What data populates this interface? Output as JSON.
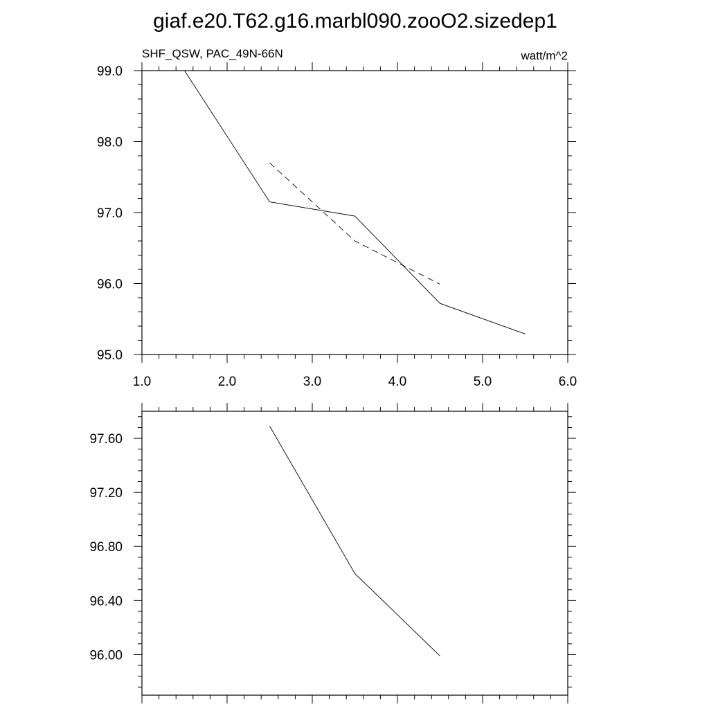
{
  "title": "giaf.e20.T62.g16.marbl090.zooO2.sizedep1",
  "chart_data": [
    {
      "type": "line",
      "left_label": "SHF_QSW, PAC_49N-66N",
      "right_label": "watt/m^2",
      "xlim": [
        1.0,
        6.0
      ],
      "ylim": [
        95.0,
        99.0
      ],
      "x_ticks": [
        1.0,
        2.0,
        3.0,
        4.0,
        5.0,
        6.0
      ],
      "x_tick_labels": [
        "1.0",
        "2.0",
        "3.0",
        "4.0",
        "5.0",
        "6.0"
      ],
      "y_ticks": [
        95.0,
        96.0,
        97.0,
        98.0,
        99.0
      ],
      "y_tick_labels": [
        "95.0",
        "96.0",
        "97.0",
        "98.0",
        "99.0"
      ],
      "grid": false,
      "series": [
        {
          "style": "solid",
          "x": [
            1.5,
            2.5,
            3.5,
            4.5,
            5.5
          ],
          "y": [
            99.0,
            97.15,
            96.95,
            95.72,
            95.29
          ]
        },
        {
          "style": "dashed",
          "x": [
            2.5,
            3.5,
            4.5
          ],
          "y": [
            97.7,
            96.6,
            95.99
          ]
        }
      ]
    },
    {
      "type": "line",
      "xlim": [
        1.0,
        6.0
      ],
      "ylim": [
        95.7,
        97.8
      ],
      "x_ticks": [
        1.0,
        2.0,
        3.0,
        4.0,
        5.0,
        6.0
      ],
      "y_ticks": [
        96.0,
        96.4,
        96.8,
        97.2,
        97.6
      ],
      "y_tick_labels": [
        "96.00",
        "96.40",
        "96.80",
        "97.20",
        "97.60"
      ],
      "grid": false,
      "series": [
        {
          "style": "solid",
          "x": [
            2.5,
            3.5,
            4.5
          ],
          "y": [
            97.69,
            96.6,
            95.99
          ]
        }
      ]
    }
  ]
}
